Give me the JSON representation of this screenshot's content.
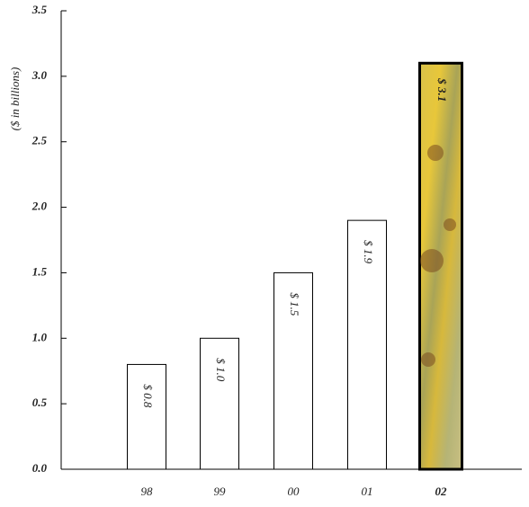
{
  "chart_data": {
    "type": "bar",
    "y_axis_label": "($ in billions)",
    "categories": [
      "98",
      "99",
      "00",
      "01",
      "02"
    ],
    "values": [
      0.8,
      1.0,
      1.5,
      1.9,
      3.1
    ],
    "value_labels": [
      "$ 0.8",
      "$ 1.0",
      "$ 1.5",
      "$ 1.9",
      "$ 3.1"
    ],
    "color": "#ffffff",
    "ylim": [
      0,
      3.5
    ],
    "yticks": [
      {
        "value": 0,
        "label": "0.0"
      },
      0.5,
      {
        "value": 1,
        "label": "1.0"
      },
      1.5,
      {
        "value": 2,
        "label": "2.0"
      },
      2.5,
      {
        "value": 3,
        "label": "3.0"
      },
      3.5
    ],
    "grid": false
  }
}
